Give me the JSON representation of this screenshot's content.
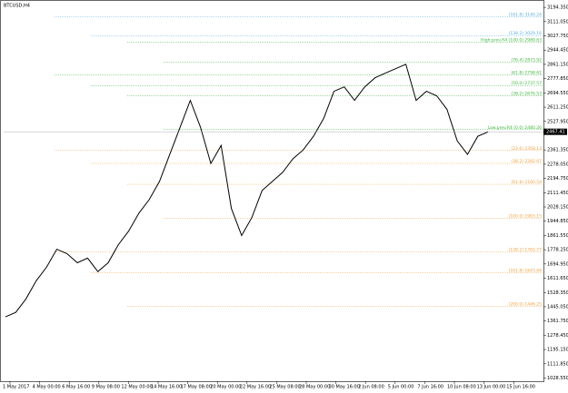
{
  "chart_data": {
    "type": "line",
    "title": "BTCUSD,H4",
    "color": "#000000",
    "values": [
      1386,
      1412,
      1491,
      1597,
      1676,
      1781,
      1755,
      1702,
      1729,
      1650,
      1702,
      1808,
      1887,
      1992,
      2071,
      2177,
      2335,
      2493,
      2651,
      2493,
      2282,
      2388,
      2019,
      1861,
      1966,
      2124,
      2177,
      2230,
      2309,
      2361,
      2441,
      2546,
      2704,
      2730,
      2651,
      2730,
      2783,
      2810,
      2836,
      2862,
      2651,
      2704,
      2678,
      2599,
      2414,
      2335,
      2441,
      2467
    ],
    "ylim": [
      1010,
      3232
    ],
    "yticks": [
      {
        "value": 3194.35,
        "label": "3194.350"
      },
      {
        "value": 3111.05,
        "label": "3111.050"
      },
      {
        "value": 3027.75,
        "label": "3027.750"
      },
      {
        "value": 2944.45,
        "label": "2944.450"
      },
      {
        "value": 2861.15,
        "label": "2861.150"
      },
      {
        "value": 2777.85,
        "label": "2777.850"
      },
      {
        "value": 2694.55,
        "label": "2694.550"
      },
      {
        "value": 2611.25,
        "label": "2611.250"
      },
      {
        "value": 2527.95,
        "label": "2527.950"
      },
      {
        "value": 2361.35,
        "label": "2361.350"
      },
      {
        "value": 2278.05,
        "label": "2278.050"
      },
      {
        "value": 2194.75,
        "label": "2194.750"
      },
      {
        "value": 2111.45,
        "label": "2111.450"
      },
      {
        "value": 2028.15,
        "label": "2028.150"
      },
      {
        "value": 1944.85,
        "label": "1944.850"
      },
      {
        "value": 1861.55,
        "label": "1861.550"
      },
      {
        "value": 1778.25,
        "label": "1778.250"
      },
      {
        "value": 1694.95,
        "label": "1694.950"
      },
      {
        "value": 1611.65,
        "label": "1611.650"
      },
      {
        "value": 1528.35,
        "label": "1528.350"
      },
      {
        "value": 1445.05,
        "label": "1445.050"
      },
      {
        "value": 1361.75,
        "label": "1361.750"
      },
      {
        "value": 1278.45,
        "label": "1278.450"
      },
      {
        "value": 1195.15,
        "label": "1195.150"
      },
      {
        "value": 1111.85,
        "label": "1111.850"
      },
      {
        "value": 1028.55,
        "label": "1028.550"
      }
    ],
    "last_price": {
      "value": 2467.41,
      "label": "2467.41"
    },
    "xticks": [
      "1 May 2017",
      "4 May 00:00",
      "6 May 16:00",
      "9 May 08:00",
      "12 May 00:00",
      "14 May 16:00",
      "17 May 08:00",
      "20 May 00:00",
      "22 May 16:00",
      "25 May 08:00",
      "28 May 00:00",
      "30 May 16:00",
      "2 Jun 08:00",
      "5 Jun 00:00",
      "7 Jun 16:00",
      "10 Jun 08:00",
      "13 Jun 00:00",
      "15 Jun 16:00"
    ],
    "levels": [
      {
        "label": "(161.8) 3140.24",
        "value": 3140.24,
        "color": "#5aaee0"
      },
      {
        "label": "(138.2) 3029.16",
        "value": 3029.16,
        "color": "#5aaee0"
      },
      {
        "label": "High:prev.R4 (100.0) 2989.63",
        "value": 2989.63,
        "color": "#3cb43c"
      },
      {
        "label": "(76.4) 2873.92",
        "value": 2873.92,
        "color": "#3cb43c"
      },
      {
        "label": "(61.8) 2798.61",
        "value": 2798.61,
        "color": "#3cb43c"
      },
      {
        "label": "(50.0) 2737.57",
        "value": 2737.57,
        "color": "#3cb43c"
      },
      {
        "label": "(38.2) 2676.53",
        "value": 2676.53,
        "color": "#3cb43c"
      },
      {
        "label": "Low:prev.R4 (0.0) 2480.26",
        "value": 2480.26,
        "color": "#3cb43c"
      },
      {
        "label": "(23.6) 2358.13",
        "value": 2358.13,
        "color": "#f0a040"
      },
      {
        "label": "(38.2) 2282.67",
        "value": 2282.67,
        "color": "#f0a040"
      },
      {
        "label": "(61.8) 2160.54",
        "value": 2160.54,
        "color": "#f0a040"
      },
      {
        "label": "(100.0) 1963.15",
        "value": 1963.15,
        "color": "#f0a040"
      },
      {
        "label": "(138.2) 1765.77",
        "value": 1765.77,
        "color": "#f0a040"
      },
      {
        "label": "(161.8) 1643.64",
        "value": 1643.64,
        "color": "#f0a040"
      },
      {
        "label": "(200.0) 1446.25",
        "value": 1446.25,
        "color": "#f0a040"
      }
    ]
  }
}
